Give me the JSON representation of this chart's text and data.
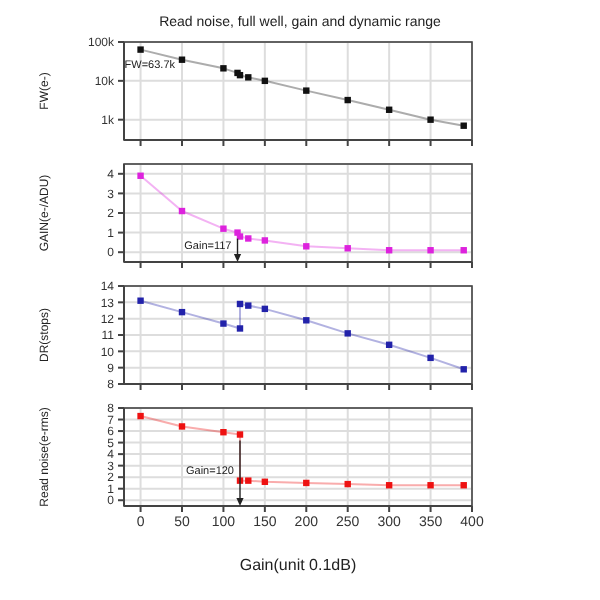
{
  "chart_data": [
    {
      "type": "line",
      "title": "Read noise, full well, gain and dynamic range",
      "ylabel": "FW(e-)",
      "log": "y",
      "grid": true,
      "marker": "square",
      "tick_labels": "y",
      "x": [
        0,
        50,
        100,
        117,
        120,
        130,
        150,
        200,
        250,
        300,
        350,
        390
      ],
      "series": [
        {
          "color": "#111111",
          "values": [
            63700,
            35000,
            21000,
            16000,
            14000,
            12300,
            10000,
            5600,
            3200,
            1800,
            1000,
            700
          ]
        }
      ],
      "xlim": [
        -20,
        400
      ],
      "xticks": [
        0,
        50,
        100,
        150,
        200,
        250,
        300,
        350,
        400
      ],
      "ylim": [
        300,
        100000
      ],
      "yticks": [
        {
          "value": 1000,
          "label": "1k"
        },
        {
          "value": 10000,
          "label": "10k"
        },
        {
          "value": 100000,
          "label": "100k"
        }
      ],
      "annotations": [
        {
          "text": "FW=63.7k",
          "x": 0,
          "y": 63700
        }
      ]
    },
    {
      "type": "line",
      "ylabel": "GAIN(e-/ADU)",
      "grid": true,
      "marker": "square",
      "tick_labels": "y",
      "x": [
        0,
        50,
        100,
        117,
        120,
        130,
        150,
        200,
        250,
        300,
        350,
        390
      ],
      "series": [
        {
          "color": "#dd22dd",
          "values": [
            3.9,
            2.1,
            1.2,
            1.0,
            0.8,
            0.7,
            0.6,
            0.3,
            0.2,
            0.1,
            0.1,
            0.1
          ]
        }
      ],
      "xlim": [
        -20,
        400
      ],
      "xticks": [
        0,
        50,
        100,
        150,
        200,
        250,
        300,
        350,
        400
      ],
      "ylim": [
        -0.5,
        4.5
      ],
      "yticks": [
        0,
        1,
        2,
        3,
        4
      ],
      "annotations": [
        {
          "text": "Gain=117",
          "x": 117,
          "y": 1.0
        }
      ]
    },
    {
      "type": "line",
      "ylabel": "DR(stops)",
      "grid": true,
      "marker": "square",
      "tick_labels": "y",
      "x": [
        0,
        50,
        100,
        120,
        120,
        130,
        150,
        200,
        250,
        300,
        350,
        390
      ],
      "series": [
        {
          "color": "#2222aa",
          "values": [
            13.1,
            12.4,
            11.7,
            11.4,
            12.9,
            12.8,
            12.6,
            11.9,
            11.1,
            10.4,
            9.6,
            8.9
          ]
        }
      ],
      "xlim": [
        -20,
        400
      ],
      "xticks": [
        0,
        50,
        100,
        150,
        200,
        250,
        300,
        350,
        400
      ],
      "ylim": [
        8,
        14
      ],
      "yticks": [
        8,
        9,
        10,
        11,
        12,
        13,
        14
      ]
    },
    {
      "type": "line",
      "ylabel": "Read noise(e-rms)",
      "xlabel": "Gain(unit 0.1dB)",
      "grid": true,
      "marker": "square",
      "x": [
        0,
        50,
        100,
        120,
        120,
        130,
        150,
        200,
        250,
        300,
        350,
        390
      ],
      "series": [
        {
          "color": "#ee1111",
          "values": [
            7.3,
            6.4,
            5.9,
            5.7,
            1.7,
            1.7,
            1.6,
            1.5,
            1.4,
            1.3,
            1.3,
            1.3
          ]
        }
      ],
      "xlim": [
        -20,
        400
      ],
      "xticks": [
        0,
        50,
        100,
        150,
        200,
        250,
        300,
        350,
        400
      ],
      "ylim": [
        -0.5,
        8
      ],
      "yticks": [
        0,
        1,
        2,
        3,
        4,
        5,
        6,
        7,
        8
      ],
      "annotations": [
        {
          "text": "Gain=120",
          "x": 120,
          "y": 5.7
        }
      ]
    }
  ]
}
